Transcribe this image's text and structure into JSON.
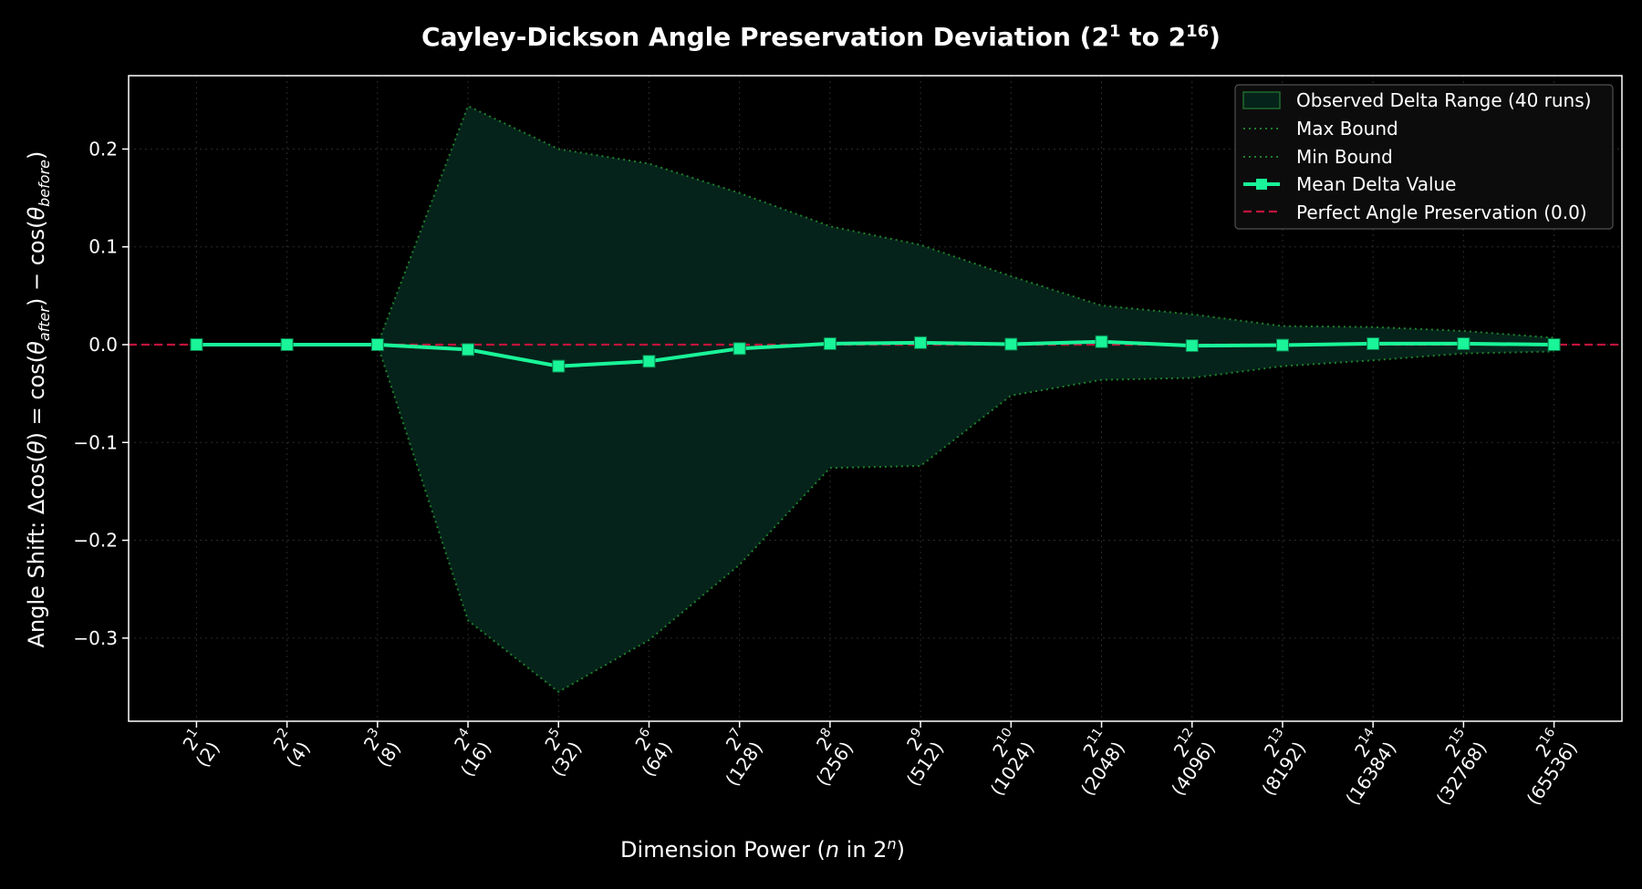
{
  "chart_data": {
    "type": "line",
    "title_parts": {
      "prefix": "Cayley-Dickson Angle Preservation Deviation (2",
      "sup1": "1",
      "mid": " to 2",
      "sup2": "16",
      "suffix": ")"
    },
    "xlabel_parts": {
      "prefix": "Dimension Power (",
      "var": "n",
      "mid": " in 2",
      "sup": "n",
      "suffix": ")"
    },
    "ylabel_parts": {
      "a": "Angle Shift: Δcos(",
      "b": "θ",
      "c": ") = cos(",
      "d": "θ",
      "e": "after",
      "f": ") − cos(",
      "g": "θ",
      "h": "before",
      "i": ")"
    },
    "x_ticks": [
      {
        "power": "1",
        "dim": "(2)"
      },
      {
        "power": "2",
        "dim": "(4)"
      },
      {
        "power": "3",
        "dim": "(8)"
      },
      {
        "power": "4",
        "dim": "(16)"
      },
      {
        "power": "5",
        "dim": "(32)"
      },
      {
        "power": "6",
        "dim": "(64)"
      },
      {
        "power": "7",
        "dim": "(128)"
      },
      {
        "power": "8",
        "dim": "(256)"
      },
      {
        "power": "9",
        "dim": "(512)"
      },
      {
        "power": "10",
        "dim": "(1024)"
      },
      {
        "power": "11",
        "dim": "(2048)"
      },
      {
        "power": "12",
        "dim": "(4096)"
      },
      {
        "power": "13",
        "dim": "(8192)"
      },
      {
        "power": "14",
        "dim": "(16384)"
      },
      {
        "power": "15",
        "dim": "(32768)"
      },
      {
        "power": "16",
        "dim": "(65536)"
      }
    ],
    "x": [
      1,
      2,
      3,
      4,
      5,
      6,
      7,
      8,
      9,
      10,
      11,
      12,
      13,
      14,
      15,
      16
    ],
    "y_ticks": [
      0.2,
      0.1,
      0.0,
      -0.1,
      -0.2,
      -0.3
    ],
    "y_tick_labels": [
      "0.2",
      "0.1",
      "0.0",
      "−0.1",
      "−0.2",
      "−0.3"
    ],
    "xlim": [
      0.25,
      16.75
    ],
    "ylim": [
      -0.385,
      0.275
    ],
    "grid": true,
    "legend_position": "top-right",
    "series": [
      {
        "name": "Max Bound",
        "style": "dotted",
        "values": [
          0,
          0,
          0,
          0.244,
          0.2,
          0.185,
          0.155,
          0.121,
          0.102,
          0.07,
          0.04,
          0.031,
          0.019,
          0.018,
          0.014,
          0.007
        ]
      },
      {
        "name": "Min Bound",
        "style": "dotted",
        "values": [
          0,
          0,
          0,
          -0.282,
          -0.355,
          -0.302,
          -0.225,
          -0.126,
          -0.124,
          -0.052,
          -0.036,
          -0.034,
          -0.022,
          -0.016,
          -0.009,
          -0.007
        ]
      },
      {
        "name": "Mean Delta Value",
        "style": "solid-square",
        "values": [
          0,
          0,
          0,
          -0.005,
          -0.022,
          -0.017,
          -0.004,
          0.001,
          0.002,
          0.0005,
          0.003,
          -0.001,
          -0.0005,
          0.001,
          0.001,
          0.0
        ]
      }
    ],
    "band_label": "Observed Delta Range (40 runs)",
    "reference_line": {
      "name": "Perfect Angle Preservation (0.0)",
      "y": 0.0
    },
    "colors": {
      "background": "#000000",
      "band_fill": "#05231a",
      "band_edge": "#1e6b2c",
      "bound_line": "#1f7f2e",
      "mean_line": "#19f598",
      "reference": "#c0143c",
      "grid": "#2a2a2a",
      "axes": "#ffffff",
      "legend_bg": "#0d0d0d",
      "legend_border": "#555555"
    }
  }
}
